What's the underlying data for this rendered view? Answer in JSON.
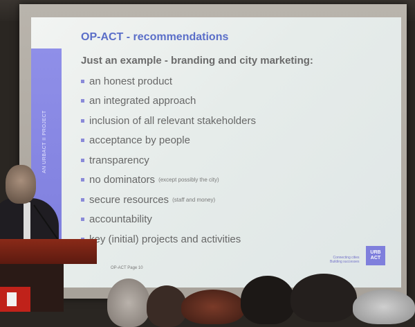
{
  "slide": {
    "title": "OP-ACT - recommendations",
    "side_label": "AN URBACT II PROJECT",
    "subtitle": "Just an example - branding and city marketing:",
    "bullets": [
      {
        "text": "an honest product",
        "note": ""
      },
      {
        "text": "an integrated approach",
        "note": ""
      },
      {
        "text": "inclusion of all relevant stakeholders",
        "note": ""
      },
      {
        "text": "acceptance by people",
        "note": ""
      },
      {
        "text": "transparency",
        "note": ""
      },
      {
        "text": "no dominators",
        "note": "(except possibly the city)"
      },
      {
        "text": "secure resources",
        "note": "(staff and money)"
      },
      {
        "text": "accountability",
        "note": ""
      },
      {
        "text": "key (initial) projects and activities",
        "note": ""
      }
    ],
    "footer_left": "OP-ACT Page 10",
    "footer_tag_line1": "Connecting cities",
    "footer_tag_line2": "Building successes",
    "logo_line1": "URB",
    "logo_line2": "ACT"
  },
  "colors": {
    "side_bar": "#8a8ae4",
    "title": "#5a6ec8",
    "body_text": "#676767",
    "podium": "#8a2a18"
  }
}
